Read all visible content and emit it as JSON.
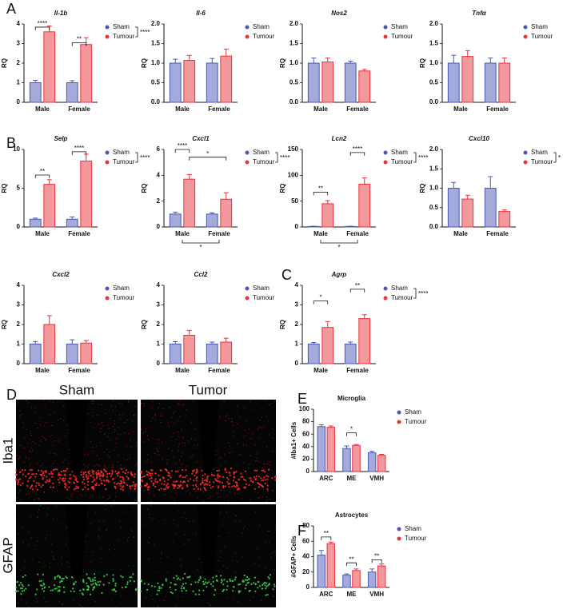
{
  "panels": [
    "A",
    "B",
    "C",
    "D",
    "E",
    "F"
  ],
  "image_panel": {
    "columns": [
      "Sham",
      "Tumor"
    ],
    "rows": [
      "Iba1",
      "GFAP"
    ]
  },
  "chart_data": [
    {
      "type": "bar",
      "title": "Il-1b",
      "italic": true,
      "y_label": "RQ",
      "legend": "right",
      "categories": [
        "Male",
        "Female"
      ],
      "series": [
        {
          "name": "Sham",
          "color": "#4a57b5",
          "values": [
            1.0,
            1.0
          ],
          "errors": [
            0.12,
            0.1
          ]
        },
        {
          "name": "Tumour",
          "color": "#e8323c",
          "values": [
            3.6,
            2.95
          ],
          "errors": [
            0.3,
            0.35
          ]
        }
      ],
      "ylim": [
        0,
        4
      ],
      "yticks": [
        0,
        1,
        2,
        3,
        4
      ],
      "annotations": [
        "****",
        "**",
        "****"
      ]
    },
    {
      "type": "bar",
      "title": "Il-6",
      "italic": true,
      "y_label": "RQ",
      "legend": "right",
      "categories": [
        "Male",
        "Female"
      ],
      "series": [
        {
          "name": "Sham",
          "color": "#4a57b5",
          "values": [
            1.0,
            1.0
          ],
          "errors": [
            0.1,
            0.12
          ]
        },
        {
          "name": "Tumour",
          "color": "#e8323c",
          "values": [
            1.07,
            1.18
          ],
          "errors": [
            0.13,
            0.18
          ]
        }
      ],
      "ylim": [
        0,
        2
      ],
      "yticks": [
        {
          "value": 0,
          "label": "0.0"
        },
        {
          "value": 0.5,
          "label": "0.5"
        },
        {
          "value": 1,
          "label": "1.0"
        },
        {
          "value": 1.5,
          "label": "1.5"
        },
        {
          "value": 2,
          "label": "2.0"
        }
      ],
      "annotations": []
    },
    {
      "type": "bar",
      "title": "Nos2",
      "italic": true,
      "y_label": "RQ",
      "legend": "right",
      "categories": [
        "Male",
        "Female"
      ],
      "series": [
        {
          "name": "Sham",
          "color": "#4a57b5",
          "values": [
            1.0,
            1.0
          ],
          "errors": [
            0.13,
            0.05
          ]
        },
        {
          "name": "Tumour",
          "color": "#e8323c",
          "values": [
            1.03,
            0.8
          ],
          "errors": [
            0.1,
            0.04
          ]
        }
      ],
      "ylim": [
        0,
        2
      ],
      "yticks": [
        {
          "value": 0,
          "label": "0.0"
        },
        {
          "value": 0.5,
          "label": "0.5"
        },
        {
          "value": 1,
          "label": "1.0"
        },
        {
          "value": 1.5,
          "label": "1.5"
        },
        {
          "value": 2,
          "label": "2.0"
        }
      ],
      "annotations": []
    },
    {
      "type": "bar",
      "title": "Tnfα",
      "italic": true,
      "y_label": "RQ",
      "legend": "right",
      "categories": [
        "Male",
        "Female"
      ],
      "series": [
        {
          "name": "Sham",
          "color": "#4a57b5",
          "values": [
            1.0,
            1.0
          ],
          "errors": [
            0.2,
            0.13
          ]
        },
        {
          "name": "Tumour",
          "color": "#e8323c",
          "values": [
            1.17,
            1.0
          ],
          "errors": [
            0.15,
            0.13
          ]
        }
      ],
      "ylim": [
        0,
        2
      ],
      "yticks": [
        {
          "value": 0,
          "label": "0.0"
        },
        {
          "value": 0.5,
          "label": "0.5"
        },
        {
          "value": 1,
          "label": "1.0"
        },
        {
          "value": 1.5,
          "label": "1.5"
        },
        {
          "value": 2,
          "label": "2.0"
        }
      ],
      "annotations": []
    },
    {
      "type": "bar",
      "title": "Selp",
      "italic": true,
      "y_label": "RQ",
      "legend": "right",
      "categories": [
        "Male",
        "Female"
      ],
      "series": [
        {
          "name": "Sham",
          "color": "#4a57b5",
          "values": [
            1.0,
            1.0
          ],
          "errors": [
            0.15,
            0.3
          ]
        },
        {
          "name": "Tumour",
          "color": "#e8323c",
          "values": [
            5.5,
            8.5
          ],
          "errors": [
            0.6,
            0.9
          ]
        }
      ],
      "ylim": [
        0,
        10
      ],
      "yticks": [
        0,
        5,
        10
      ],
      "annotations": [
        "**",
        "****",
        "****"
      ]
    },
    {
      "type": "bar",
      "title": "Cxcl1",
      "italic": true,
      "y_label": "RQ",
      "legend": "right",
      "categories": [
        "Male",
        "Female"
      ],
      "series": [
        {
          "name": "Sham",
          "color": "#4a57b5",
          "values": [
            1.0,
            1.0
          ],
          "errors": [
            0.15,
            0.1
          ]
        },
        {
          "name": "Tumour",
          "color": "#e8323c",
          "values": [
            3.7,
            2.15
          ],
          "errors": [
            0.35,
            0.5
          ]
        }
      ],
      "ylim": [
        0,
        6
      ],
      "yticks": [
        0,
        2,
        4,
        6
      ],
      "annotations": [
        "****",
        "*",
        "****",
        "*"
      ]
    },
    {
      "type": "bar",
      "title": "Lcn2",
      "italic": true,
      "y_label": "RQ",
      "legend": "right",
      "categories": [
        "Male",
        "Female"
      ],
      "series": [
        {
          "name": "Sham",
          "color": "#4a57b5",
          "values": [
            1,
            1
          ],
          "errors": [
            0.5,
            0.5
          ]
        },
        {
          "name": "Tumour",
          "color": "#e8323c",
          "values": [
            45,
            83
          ],
          "errors": [
            6,
            12
          ]
        }
      ],
      "ylim": [
        0,
        150
      ],
      "yticks": [
        0,
        50,
        100,
        150
      ],
      "annotations": [
        "**",
        "****",
        "****",
        "*"
      ]
    },
    {
      "type": "bar",
      "title": "Cxcl10",
      "italic": true,
      "y_label": "RQ",
      "legend": "right",
      "categories": [
        "Male",
        "Female"
      ],
      "series": [
        {
          "name": "Sham",
          "color": "#4a57b5",
          "values": [
            1.0,
            1.0
          ],
          "errors": [
            0.15,
            0.3
          ]
        },
        {
          "name": "Tumour",
          "color": "#e8323c",
          "values": [
            0.72,
            0.4
          ],
          "errors": [
            0.1,
            0.04
          ]
        }
      ],
      "ylim": [
        0,
        2
      ],
      "yticks": [
        {
          "value": 0,
          "label": "0.0"
        },
        {
          "value": 0.5,
          "label": "0.5"
        },
        {
          "value": 1,
          "label": "1.0"
        },
        {
          "value": 1.5,
          "label": "1.5"
        },
        {
          "value": 2,
          "label": "2.0"
        }
      ],
      "annotations": [
        "*"
      ]
    },
    {
      "type": "bar",
      "title": "Cxcl2",
      "italic": true,
      "y_label": "RQ",
      "legend": "right",
      "categories": [
        "Male",
        "Female"
      ],
      "series": [
        {
          "name": "Sham",
          "color": "#4a57b5",
          "values": [
            1.0,
            1.0
          ],
          "errors": [
            0.13,
            0.22
          ]
        },
        {
          "name": "Tumour",
          "color": "#e8323c",
          "values": [
            2.0,
            1.05
          ],
          "errors": [
            0.45,
            0.13
          ]
        }
      ],
      "ylim": [
        0,
        4
      ],
      "yticks": [
        0,
        1,
        2,
        3,
        4
      ],
      "annotations": []
    },
    {
      "type": "bar",
      "title": "Ccl2",
      "italic": true,
      "y_label": "RQ",
      "legend": "right",
      "categories": [
        "Male",
        "Female"
      ],
      "series": [
        {
          "name": "Sham",
          "color": "#4a57b5",
          "values": [
            1.0,
            1.0
          ],
          "errors": [
            0.12,
            0.1
          ]
        },
        {
          "name": "Tumour",
          "color": "#e8323c",
          "values": [
            1.45,
            1.1
          ],
          "errors": [
            0.25,
            0.2
          ]
        }
      ],
      "ylim": [
        0,
        4
      ],
      "yticks": [
        0,
        1,
        2,
        3,
        4
      ],
      "annotations": []
    },
    {
      "type": "bar",
      "title": "Agrp",
      "italic": true,
      "y_label": "RQ",
      "legend": "right",
      "categories": [
        "Male",
        "Female"
      ],
      "series": [
        {
          "name": "Sham",
          "color": "#4a57b5",
          "values": [
            1.0,
            1.0
          ],
          "errors": [
            0.08,
            0.1
          ]
        },
        {
          "name": "Tumour",
          "color": "#e8323c",
          "values": [
            1.85,
            2.3
          ],
          "errors": [
            0.3,
            0.2
          ]
        }
      ],
      "ylim": [
        0,
        4
      ],
      "yticks": [
        0,
        1,
        2,
        3,
        4
      ],
      "annotations": [
        "*",
        "**",
        "****"
      ]
    },
    {
      "type": "bar",
      "title": "Microglia",
      "italic": false,
      "y_label": "#Iba1+ Cells",
      "legend": "right",
      "categories": [
        "ARC",
        "ME",
        "VMH"
      ],
      "series": [
        {
          "name": "Sham",
          "color": "#4a57b5",
          "values": [
            72,
            37,
            30
          ],
          "errors": [
            3,
            4,
            2.5
          ]
        },
        {
          "name": "Tumour",
          "color": "#e8323c",
          "values": [
            71,
            42,
            26
          ],
          "errors": [
            2,
            1.5,
            1.5
          ]
        }
      ],
      "ylim": [
        0,
        100
      ],
      "yticks": [
        0,
        20,
        40,
        60,
        80,
        100
      ],
      "annotations": [
        "*"
      ]
    },
    {
      "type": "bar",
      "title": "Astrocytes",
      "italic": false,
      "y_label": "#GFAP+ Cells",
      "legend": "right",
      "categories": [
        "ARC",
        "ME",
        "VMH"
      ],
      "series": [
        {
          "name": "Sham",
          "color": "#4a57b5",
          "values": [
            42,
            16,
            20
          ],
          "errors": [
            6,
            1.5,
            4
          ]
        },
        {
          "name": "Tumour",
          "color": "#e8323c",
          "values": [
            57,
            22,
            28
          ],
          "errors": [
            2,
            2,
            2.5
          ]
        }
      ],
      "ylim": [
        0,
        80
      ],
      "yticks": [
        0,
        20,
        40,
        60,
        80
      ],
      "annotations": [
        "**",
        "**",
        "**"
      ]
    }
  ]
}
